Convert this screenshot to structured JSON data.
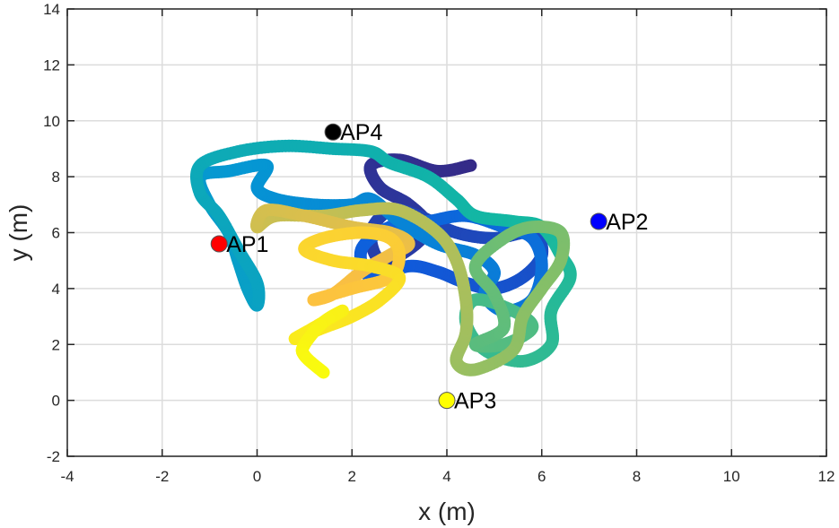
{
  "chart_data": {
    "type": "scatter",
    "title": "",
    "xlabel": "x (m)",
    "ylabel": "y (m)",
    "xlim": [
      -4,
      12
    ],
    "ylim": [
      -2,
      14
    ],
    "xticks": [
      -4,
      -2,
      0,
      2,
      4,
      6,
      8,
      10,
      12
    ],
    "yticks": [
      -2,
      0,
      2,
      4,
      6,
      8,
      10,
      12,
      14
    ],
    "grid": true,
    "access_points": [
      {
        "label": "AP1",
        "x": -0.8,
        "y": 5.6,
        "color": "#ff0000"
      },
      {
        "label": "AP2",
        "x": 7.2,
        "y": 6.4,
        "color": "#0000ff"
      },
      {
        "label": "AP3",
        "x": 4.0,
        "y": 0.0,
        "color": "#ffff00"
      },
      {
        "label": "AP4",
        "x": 1.6,
        "y": 9.6,
        "color": "#000000"
      }
    ],
    "trajectory": {
      "colormap": "parula",
      "points": [
        [
          4.5,
          8.4
        ],
        [
          3.8,
          8.2
        ],
        [
          3.0,
          8.6
        ],
        [
          2.4,
          8.4
        ],
        [
          2.6,
          7.6
        ],
        [
          3.2,
          7.0
        ],
        [
          3.6,
          6.2
        ],
        [
          3.2,
          5.4
        ],
        [
          2.6,
          5.0
        ],
        [
          2.4,
          6.0
        ],
        [
          2.8,
          6.8
        ],
        [
          3.4,
          6.6
        ],
        [
          4.2,
          6.0
        ],
        [
          5.0,
          5.8
        ],
        [
          5.8,
          6.0
        ],
        [
          6.0,
          5.2
        ],
        [
          5.6,
          4.4
        ],
        [
          5.0,
          4.0
        ],
        [
          4.4,
          4.2
        ],
        [
          3.8,
          4.6
        ],
        [
          3.2,
          4.8
        ],
        [
          2.4,
          4.4
        ],
        [
          2.2,
          5.4
        ],
        [
          2.8,
          6.2
        ],
        [
          3.6,
          6.4
        ],
        [
          4.4,
          6.6
        ],
        [
          5.2,
          6.2
        ],
        [
          5.8,
          5.8
        ],
        [
          6.0,
          4.8
        ],
        [
          5.8,
          3.6
        ],
        [
          5.2,
          3.2
        ],
        [
          4.8,
          3.8
        ],
        [
          5.0,
          4.6
        ],
        [
          4.6,
          5.2
        ],
        [
          3.8,
          5.6
        ],
        [
          3.0,
          6.4
        ],
        [
          2.4,
          7.2
        ],
        [
          2.0,
          7.0
        ],
        [
          1.2,
          7.0
        ],
        [
          0.4,
          7.2
        ],
        [
          0.0,
          7.6
        ],
        [
          0.2,
          8.4
        ],
        [
          -0.6,
          8.2
        ],
        [
          -1.2,
          8.0
        ],
        [
          -1.0,
          7.0
        ],
        [
          -0.6,
          6.0
        ],
        [
          -0.4,
          5.0
        ],
        [
          -0.2,
          4.0
        ],
        [
          0.0,
          3.4
        ],
        [
          0.0,
          4.2
        ],
        [
          -0.4,
          5.4
        ],
        [
          -0.8,
          6.6
        ],
        [
          -1.2,
          7.4
        ],
        [
          -1.2,
          8.4
        ],
        [
          -0.4,
          8.9
        ],
        [
          0.6,
          9.1
        ],
        [
          1.6,
          9.0
        ],
        [
          2.4,
          8.9
        ],
        [
          2.8,
          8.5
        ],
        [
          3.6,
          8.0
        ],
        [
          4.2,
          7.2
        ],
        [
          4.6,
          6.6
        ],
        [
          5.4,
          6.4
        ],
        [
          6.0,
          6.2
        ],
        [
          6.4,
          5.2
        ],
        [
          6.6,
          4.4
        ],
        [
          6.2,
          3.2
        ],
        [
          6.2,
          2.0
        ],
        [
          5.6,
          1.4
        ],
        [
          4.8,
          1.8
        ],
        [
          4.4,
          2.8
        ],
        [
          4.6,
          3.6
        ],
        [
          5.4,
          3.2
        ],
        [
          5.8,
          2.6
        ],
        [
          5.2,
          2.0
        ],
        [
          4.6,
          2.0
        ],
        [
          5.2,
          2.6
        ],
        [
          5.0,
          3.8
        ],
        [
          4.6,
          4.8
        ],
        [
          5.2,
          5.8
        ],
        [
          5.8,
          6.2
        ],
        [
          6.4,
          6.0
        ],
        [
          6.4,
          5.0
        ],
        [
          6.0,
          4.0
        ],
        [
          5.6,
          3.0
        ],
        [
          5.4,
          1.8
        ],
        [
          4.6,
          1.1
        ],
        [
          4.2,
          1.4
        ],
        [
          4.4,
          2.4
        ],
        [
          4.4,
          3.6
        ],
        [
          4.2,
          5.0
        ],
        [
          3.8,
          6.0
        ],
        [
          3.0,
          6.8
        ],
        [
          2.2,
          6.8
        ],
        [
          1.4,
          6.6
        ],
        [
          0.4,
          6.6
        ],
        [
          0.0,
          6.2
        ],
        [
          0.2,
          6.8
        ],
        [
          1.0,
          6.6
        ],
        [
          2.0,
          6.2
        ],
        [
          2.8,
          6.0
        ],
        [
          3.2,
          5.6
        ],
        [
          2.8,
          5.2
        ],
        [
          2.2,
          4.6
        ],
        [
          1.6,
          3.8
        ],
        [
          1.2,
          3.6
        ],
        [
          2.0,
          4.0
        ],
        [
          2.8,
          4.4
        ],
        [
          3.0,
          5.2
        ],
        [
          2.8,
          5.8
        ],
        [
          2.2,
          6.0
        ],
        [
          1.4,
          5.8
        ],
        [
          1.0,
          5.4
        ],
        [
          1.6,
          5.0
        ],
        [
          2.4,
          4.8
        ],
        [
          3.0,
          4.4
        ],
        [
          2.6,
          3.6
        ],
        [
          2.0,
          3.0
        ],
        [
          1.4,
          2.6
        ],
        [
          0.8,
          2.2
        ],
        [
          1.2,
          2.6
        ],
        [
          1.8,
          3.2
        ],
        [
          1.4,
          2.8
        ],
        [
          1.0,
          2.0
        ],
        [
          1.0,
          1.6
        ],
        [
          1.4,
          1.0
        ]
      ]
    }
  }
}
